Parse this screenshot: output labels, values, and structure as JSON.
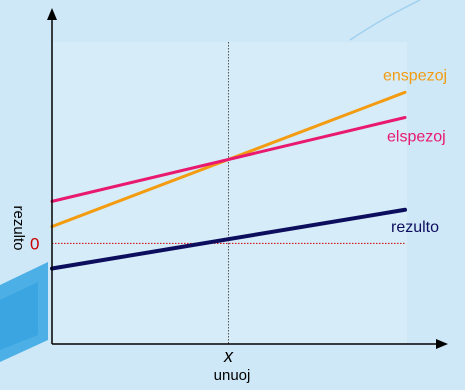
{
  "chart_data": {
    "type": "line",
    "title": "",
    "xlabel": "unuoj",
    "ylabel": "rezulto",
    "x_marker_label": "x",
    "zero_label": "0",
    "grid": false,
    "legend": "inline-right",
    "xlim": [
      0,
      10
    ],
    "ylim": [
      -6,
      12
    ],
    "x_marker": 5,
    "series": [
      {
        "name": "enspezoj",
        "color": "#f39c12",
        "values": [
          [
            0,
            1
          ],
          [
            10,
            9
          ]
        ]
      },
      {
        "name": "elspezoj",
        "color": "#e8196e",
        "values": [
          [
            0,
            2.5
          ],
          [
            10,
            7.5
          ]
        ]
      },
      {
        "name": "rezulto",
        "color": "#0d0d5e",
        "values": [
          [
            0,
            -1.5
          ],
          [
            10,
            2
          ]
        ]
      }
    ]
  },
  "colors": {
    "plot_background": "#d6ecf8",
    "page_background": "#cfe8f7",
    "axis": "#000000",
    "zero_line": "#cc0000",
    "marker_line": "#555555"
  }
}
